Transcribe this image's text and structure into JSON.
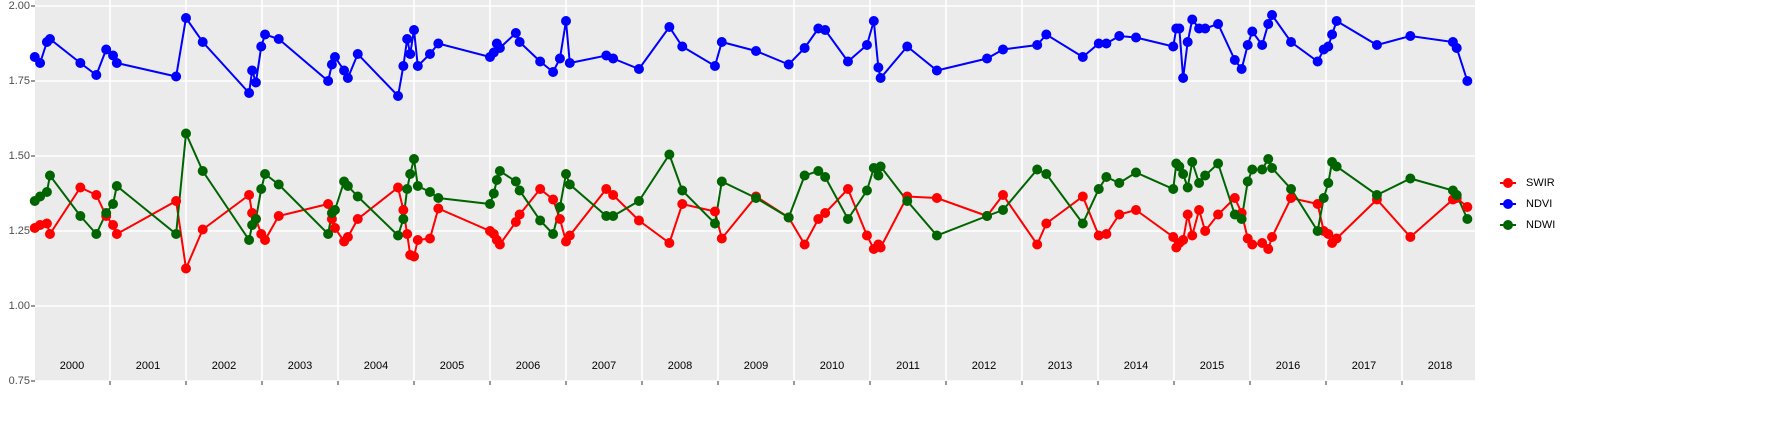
{
  "chart_data": {
    "type": "line",
    "x": [
      2000.01,
      2000.08,
      2000.17,
      2000.21,
      2000.61,
      2000.82,
      2000.95,
      2001.04,
      2001.09,
      2001.87,
      2002.0,
      2002.22,
      2002.83,
      2002.87,
      2002.92,
      2002.99,
      2003.04,
      2003.22,
      2003.87,
      2003.92,
      2003.96,
      2004.08,
      2004.13,
      2004.26,
      2004.79,
      2004.86,
      2004.91,
      2004.95,
      2005.0,
      2005.05,
      2005.21,
      2005.32,
      2006.0,
      2006.05,
      2006.09,
      2006.13,
      2006.34,
      2006.39,
      2006.66,
      2006.83,
      2006.92,
      2007.0,
      2007.05,
      2007.53,
      2007.62,
      2007.96,
      2008.36,
      2008.53,
      2008.96,
      2009.05,
      2009.5,
      2009.93,
      2010.14,
      2010.32,
      2010.41,
      2010.71,
      2010.96,
      2011.05,
      2011.11,
      2011.14,
      2011.49,
      2011.88,
      2012.54,
      2012.75,
      2013.2,
      2013.32,
      2013.8,
      2014.01,
      2014.11,
      2014.28,
      2014.5,
      2014.99,
      2015.03,
      2015.07,
      2015.12,
      2015.18,
      2015.24,
      2015.33,
      2015.41,
      2015.58,
      2015.8,
      2015.89,
      2015.97,
      2016.03,
      2016.16,
      2016.24,
      2016.29,
      2016.54,
      2016.89,
      2016.97,
      2017.03,
      2017.08,
      2017.14,
      2017.67,
      2018.11,
      2018.67,
      2018.72,
      2018.86
    ],
    "series": [
      {
        "name": "SWIR",
        "color": "#ff0000",
        "values": [
          1.26,
          1.27,
          1.275,
          1.24,
          1.395,
          1.37,
          1.3,
          1.27,
          1.24,
          1.35,
          1.125,
          1.255,
          1.37,
          1.31,
          1.29,
          1.24,
          1.22,
          1.3,
          1.34,
          1.29,
          1.26,
          1.215,
          1.23,
          1.29,
          1.395,
          1.32,
          1.24,
          1.17,
          1.165,
          1.22,
          1.225,
          1.325,
          1.25,
          1.24,
          1.22,
          1.205,
          1.28,
          1.305,
          1.39,
          1.355,
          1.29,
          1.215,
          1.235,
          1.39,
          1.37,
          1.285,
          1.21,
          1.34,
          1.315,
          1.225,
          1.365,
          1.295,
          1.205,
          1.29,
          1.31,
          1.39,
          1.235,
          1.19,
          1.205,
          1.195,
          1.365,
          1.36,
          1.3,
          1.37,
          1.205,
          1.275,
          1.365,
          1.235,
          1.24,
          1.305,
          1.32,
          1.23,
          1.195,
          1.21,
          1.22,
          1.305,
          1.235,
          1.32,
          1.25,
          1.305,
          1.36,
          1.31,
          1.225,
          1.205,
          1.21,
          1.19,
          1.23,
          1.36,
          1.34,
          1.25,
          1.24,
          1.21,
          1.225,
          1.355,
          1.23,
          1.355,
          1.36,
          1.33
        ]
      },
      {
        "name": "NDVI",
        "color": "#0000ff",
        "values": [
          1.83,
          1.81,
          1.88,
          1.89,
          1.81,
          1.77,
          1.855,
          1.835,
          1.81,
          1.765,
          1.96,
          1.88,
          1.71,
          1.785,
          1.745,
          1.865,
          1.905,
          1.89,
          1.75,
          1.805,
          1.83,
          1.785,
          1.76,
          1.84,
          1.7,
          1.8,
          1.89,
          1.84,
          1.92,
          1.8,
          1.84,
          1.875,
          1.83,
          1.845,
          1.875,
          1.86,
          1.91,
          1.88,
          1.815,
          1.78,
          1.825,
          1.95,
          1.81,
          1.835,
          1.825,
          1.79,
          1.93,
          1.865,
          1.8,
          1.88,
          1.85,
          1.805,
          1.86,
          1.925,
          1.92,
          1.815,
          1.87,
          1.95,
          1.795,
          1.76,
          1.865,
          1.785,
          1.825,
          1.855,
          1.87,
          1.905,
          1.83,
          1.875,
          1.875,
          1.9,
          1.895,
          1.865,
          1.925,
          1.925,
          1.76,
          1.88,
          1.955,
          1.925,
          1.925,
          1.94,
          1.82,
          1.79,
          1.87,
          1.915,
          1.87,
          1.94,
          1.97,
          1.88,
          1.815,
          1.855,
          1.865,
          1.905,
          1.95,
          1.87,
          1.9,
          1.88,
          1.86,
          1.75
        ]
      },
      {
        "name": "NDWI",
        "color": "#006400",
        "values": [
          1.35,
          1.365,
          1.38,
          1.435,
          1.3,
          1.24,
          1.31,
          1.34,
          1.4,
          1.24,
          1.575,
          1.45,
          1.22,
          1.27,
          1.29,
          1.39,
          1.44,
          1.405,
          1.24,
          1.31,
          1.32,
          1.415,
          1.4,
          1.365,
          1.235,
          1.29,
          1.39,
          1.44,
          1.49,
          1.4,
          1.38,
          1.36,
          1.34,
          1.375,
          1.42,
          1.45,
          1.415,
          1.385,
          1.285,
          1.24,
          1.33,
          1.44,
          1.405,
          1.3,
          1.3,
          1.35,
          1.505,
          1.385,
          1.275,
          1.415,
          1.36,
          1.295,
          1.435,
          1.45,
          1.43,
          1.29,
          1.385,
          1.46,
          1.435,
          1.465,
          1.35,
          1.235,
          1.3,
          1.32,
          1.455,
          1.44,
          1.275,
          1.39,
          1.43,
          1.41,
          1.445,
          1.39,
          1.475,
          1.465,
          1.44,
          1.395,
          1.48,
          1.41,
          1.435,
          1.475,
          1.305,
          1.29,
          1.415,
          1.455,
          1.455,
          1.49,
          1.46,
          1.39,
          1.25,
          1.36,
          1.41,
          1.48,
          1.465,
          1.37,
          1.425,
          1.385,
          1.37,
          1.29
        ]
      }
    ],
    "xlim": [
      2000,
      2018.96
    ],
    "xticks": [
      {
        "value": 2000.5,
        "label": "2000"
      },
      {
        "value": 2001.5,
        "label": "2001"
      },
      {
        "value": 2002.5,
        "label": "2002"
      },
      {
        "value": 2003.5,
        "label": "2003"
      },
      {
        "value": 2004.5,
        "label": "2004"
      },
      {
        "value": 2005.5,
        "label": "2005"
      },
      {
        "value": 2006.5,
        "label": "2006"
      },
      {
        "value": 2007.5,
        "label": "2007"
      },
      {
        "value": 2008.5,
        "label": "2008"
      },
      {
        "value": 2009.5,
        "label": "2009"
      },
      {
        "value": 2010.5,
        "label": "2010"
      },
      {
        "value": 2011.5,
        "label": "2011"
      },
      {
        "value": 2012.5,
        "label": "2012"
      },
      {
        "value": 2013.5,
        "label": "2013"
      },
      {
        "value": 2014.5,
        "label": "2014"
      },
      {
        "value": 2015.5,
        "label": "2015"
      },
      {
        "value": 2016.5,
        "label": "2016"
      },
      {
        "value": 2017.5,
        "label": "2017"
      },
      {
        "value": 2018.5,
        "label": "2018"
      }
    ],
    "xgrid": [
      2001,
      2002,
      2003,
      2004,
      2005,
      2006,
      2007,
      2008,
      2009,
      2010,
      2011,
      2012,
      2013,
      2014,
      2015,
      2016,
      2017,
      2018
    ],
    "ylim": [
      0.75,
      2.0
    ],
    "yticks": [
      0.75,
      {
        "value": 1,
        "label": "1.00"
      },
      1.25,
      {
        "value": 1.5,
        "label": "1.50"
      },
      1.75,
      {
        "value": 2,
        "label": "2.00"
      }
    ],
    "grid": true,
    "legend": "right"
  }
}
